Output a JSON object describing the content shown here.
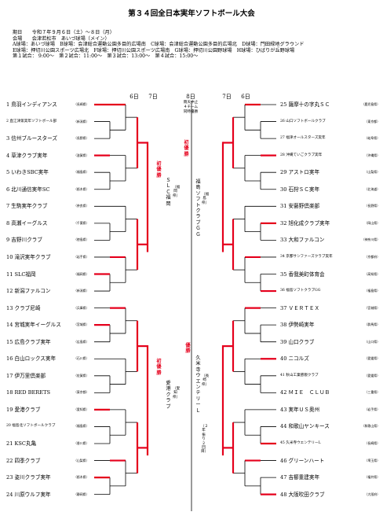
{
  "title": "第３４回全日本実年ソフトボール大会",
  "info": [
    "期日　　令和７年９月６日（土）～８日（月）",
    "会場　　会津若松市　あいづ球場（メイン）",
    "A球場：あいづ球場　B球場：会津総合運動公園多目的広場南　C球場：会津総合運動公園多目的広場北　D球場：門田緑地グラウンド",
    "E球場：押切川公園スポーツ広場北　F球場：押切川公園スポーツ広場南　G球場：押切川公園野球場　H球場：ひばりが丘野球場",
    "第１試合：  9:00～　第２試合：11:00～　第３試合：13:00～　第４試合：15:00～"
  ],
  "day_headers": {
    "left_r1": "6日",
    "left_r2": "7日",
    "center": "8日",
    "right_r2": "7日",
    "right_r1": "6日"
  },
  "center_note": "雨天中止\n４チーム\n同時優勝",
  "left_teams": [
    {
      "no": "1",
      "name": "鳥羽インディアンス",
      "pref": "（長崎県）"
    },
    {
      "no": "2",
      "name": "直江津第実年ソフトボール部",
      "pref": "（新潟県）",
      "small": true
    },
    {
      "no": "3",
      "name": "信州ブルースターズ",
      "pref": "（長野県）"
    },
    {
      "no": "4",
      "name": "草津クラブ実年",
      "pref": "（滋賀県）"
    },
    {
      "no": "5",
      "name": "いわきSBC実年",
      "pref": "（福島県）"
    },
    {
      "no": "6",
      "name": "北川通信実年SC",
      "pref": "（栃木県）"
    },
    {
      "no": "7",
      "name": "生駒実年クラブ",
      "pref": "（奈良県）"
    },
    {
      "no": "8",
      "name": "高瀬イーグルス",
      "pref": "（千葉県）"
    },
    {
      "no": "9",
      "name": "吉野川クラブ",
      "pref": "（徳島県）"
    },
    {
      "no": "10",
      "name": "滝沢実年クラブ",
      "pref": "（岩手県）"
    },
    {
      "no": "11",
      "name": "SLC福岡",
      "pref": "（福岡県）"
    },
    {
      "no": "12",
      "name": "新潟ファルコン",
      "pref": "（新潟県）"
    },
    {
      "no": "13",
      "name": "クラブ尼崎",
      "pref": "（兵庫県）"
    },
    {
      "no": "14",
      "name": "宮城実年イーグルス",
      "pref": "（宮城県）"
    },
    {
      "no": "15",
      "name": "広島クラブ実年",
      "pref": "（広島県）"
    },
    {
      "no": "16",
      "name": "白山ロックス実年",
      "pref": "（石川県）"
    },
    {
      "no": "17",
      "name": "伊万里倶楽部",
      "pref": "（佐賀県）"
    },
    {
      "no": "18",
      "name": "RED BERETS",
      "pref": "（東京都）"
    },
    {
      "no": "19",
      "name": "愛港クラブ",
      "pref": "（愛知県）"
    },
    {
      "no": "20",
      "name": "福島北ソフトボールクラブ",
      "pref": "（福島県）",
      "small": true
    },
    {
      "no": "21",
      "name": "KSC丸亀",
      "pref": "（香川県）"
    },
    {
      "no": "22",
      "name": "四季クラブ",
      "pref": "（山梨県）"
    },
    {
      "no": "23",
      "name": "姿川クラブ実年",
      "pref": "（栃木県）"
    },
    {
      "no": "24",
      "name": "川原ウルフ実年",
      "pref": "（静岡県）"
    }
  ],
  "right_teams": [
    {
      "no": "25",
      "name": "薩摩十の字丸ＳＣ",
      "pref": "（鹿児島県）"
    },
    {
      "no": "26",
      "name": "山口ソフトボールクラブ",
      "pref": "（東京都）",
      "small": true
    },
    {
      "no": "27",
      "name": "福津オールスターズ実年",
      "pref": "（岐阜県）",
      "small": true
    },
    {
      "no": "28",
      "name": "沖縄ていごクラブ実年",
      "pref": "（沖縄県）",
      "small": true
    },
    {
      "no": "29",
      "name": "アストロ実年",
      "pref": "（山梨県）"
    },
    {
      "no": "30",
      "name": "石狩ＳＣ実年",
      "pref": "（北海道）"
    },
    {
      "no": "31",
      "name": "安藝野倶楽部",
      "pref": "（長野県）"
    },
    {
      "no": "32",
      "name": "旭化成クラブ実年",
      "pref": "（岡山県）"
    },
    {
      "no": "33",
      "name": "大和ファルコン",
      "pref": "（神奈川県）"
    },
    {
      "no": "34",
      "name": "京都サンファーズクラブ実年",
      "pref": "（京都府）",
      "small": true
    },
    {
      "no": "35",
      "name": "香我美町体育会",
      "pref": "（高知県）"
    },
    {
      "no": "36",
      "name": "福島ソフトクラブGG",
      "pref": "（福島県）",
      "small": true
    },
    {
      "no": "37",
      "name": "ＶＥＲＴＥＸ",
      "pref": "（宮城県）"
    },
    {
      "no": "38",
      "name": "伊勢崎実年",
      "pref": "（群馬県）"
    },
    {
      "no": "39",
      "name": "山口クラブ",
      "pref": "（山口県）"
    },
    {
      "no": "40",
      "name": "ニコルズ",
      "pref": "（愛媛県）"
    },
    {
      "no": "41",
      "name": "秋山工業懇親クラブ",
      "pref": "（愛媛県）",
      "small": true
    },
    {
      "no": "42",
      "name": "ＭＩＥ　ＣＬＵＢ",
      "pref": "（三重県）"
    },
    {
      "no": "43",
      "name": "実年ＵＳ奥州",
      "pref": "（岩手県）"
    },
    {
      "no": "44",
      "name": "和歌山ヤンキース",
      "pref": "（和歌山県）"
    },
    {
      "no": "45",
      "name": "久米寺ウエンテリーL",
      "pref": "（長崎県）",
      "small": true
    },
    {
      "no": "46",
      "name": "グリーンハート",
      "pref": "（埼玉県）"
    },
    {
      "no": "47",
      "name": "吉櫛重建実年",
      "pref": "（福井県）"
    },
    {
      "no": "48",
      "name": "大阪吹田クラブ",
      "pref": "（大阪府）"
    }
  ],
  "champions": {
    "top_left": {
      "label": "初優勝",
      "team": "ＳＬＣ福岡",
      "pref": "（福岡県）"
    },
    "top_right": {
      "label": "初優勝",
      "team": "福島ソフトクラブＧＧ",
      "pref": "（福島県）"
    },
    "bot_left": {
      "label": "初優勝",
      "team": "愛港クラブ",
      "pref": "（愛知県）"
    },
    "bot_right": {
      "label": "優勝",
      "team": "久米寺ウエンテリーＬ",
      "pref": "（長崎県）",
      "note": "（２年振り２回目）"
    }
  }
}
